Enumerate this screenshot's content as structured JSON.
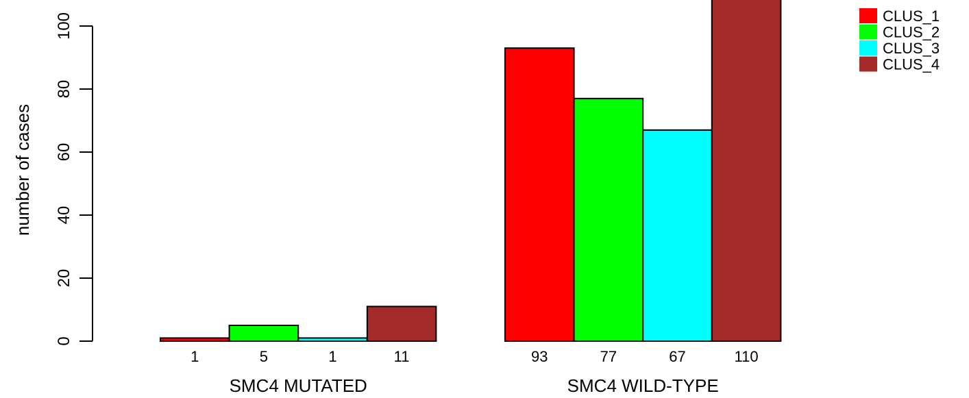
{
  "chart_data": {
    "type": "bar",
    "ylabel": "number of cases",
    "ylim": [
      0,
      110
    ],
    "yticks": [
      0,
      20,
      40,
      60,
      80,
      100
    ],
    "groups": [
      "SMC4 MUTATED",
      "SMC4 WILD-TYPE"
    ],
    "series": [
      {
        "name": "CLUS_1",
        "color": "#ff0000",
        "values": [
          1,
          93
        ]
      },
      {
        "name": "CLUS_2",
        "color": "#00ff00",
        "values": [
          5,
          77
        ]
      },
      {
        "name": "CLUS_3",
        "color": "#00ffff",
        "values": [
          1,
          67
        ]
      },
      {
        "name": "CLUS_4",
        "color": "#a52a2a",
        "values": [
          11,
          110
        ]
      }
    ],
    "legend": "top-right"
  }
}
